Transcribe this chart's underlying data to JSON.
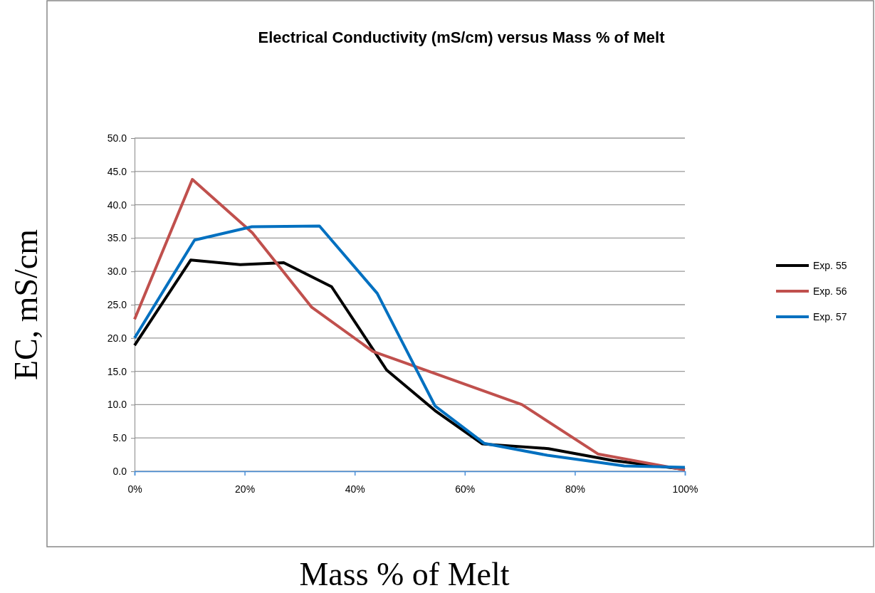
{
  "chart_data": {
    "type": "line",
    "title": "Electrical Conductivity (mS/cm) versus Mass % of Melt",
    "xlabel": "Mass % of Melt",
    "ylabel": "EC, mS/cm",
    "xlim": [
      0,
      100
    ],
    "xticks": [
      {
        "value": 0,
        "label": "0%"
      },
      {
        "value": 20,
        "label": "20%"
      },
      {
        "value": 40,
        "label": "40%"
      },
      {
        "value": 60,
        "label": "60%"
      },
      {
        "value": 80,
        "label": "80%"
      },
      {
        "value": 100,
        "label": "100%"
      }
    ],
    "ylim": [
      0,
      50
    ],
    "yticks": [
      {
        "value": 0,
        "label": "0.0"
      },
      {
        "value": 5,
        "label": "5.0"
      },
      {
        "value": 10,
        "label": "10.0"
      },
      {
        "value": 15,
        "label": "15.0"
      },
      {
        "value": 20,
        "label": "20.0"
      },
      {
        "value": 25,
        "label": "25.0"
      },
      {
        "value": 30,
        "label": "30.0"
      },
      {
        "value": 35,
        "label": "35.0"
      },
      {
        "value": 40,
        "label": "40.0"
      },
      {
        "value": 45,
        "label": "45.0"
      },
      {
        "value": 50,
        "label": "50.0"
      }
    ],
    "grid": "y",
    "legend": "right",
    "marker": "none",
    "line_style": "solid",
    "series": [
      {
        "name": "Exp. 55",
        "color": "#000000",
        "x": [
          0,
          10.2,
          19.2,
          27.1,
          35.8,
          45.8,
          54.6,
          63.2,
          75.2,
          87,
          100
        ],
        "values": [
          18.9,
          31.7,
          31.0,
          31.3,
          27.7,
          15.2,
          9.1,
          4.1,
          3.4,
          1.6,
          0.3
        ]
      },
      {
        "name": "Exp. 56",
        "color": "#c0504d",
        "x": [
          0,
          10.5,
          21.4,
          32.2,
          43.3,
          70.4,
          84.2,
          100
        ],
        "values": [
          22.8,
          43.8,
          35.8,
          24.6,
          18.0,
          10.0,
          2.6,
          0.2
        ]
      },
      {
        "name": "Exp. 57",
        "color": "#0070c0",
        "x": [
          0,
          10.9,
          21.3,
          33.6,
          44.1,
          54.6,
          63.5,
          75,
          89,
          100
        ],
        "values": [
          20.0,
          34.7,
          36.7,
          36.8,
          26.7,
          9.8,
          4.2,
          2.4,
          0.8,
          0.6
        ]
      }
    ]
  }
}
